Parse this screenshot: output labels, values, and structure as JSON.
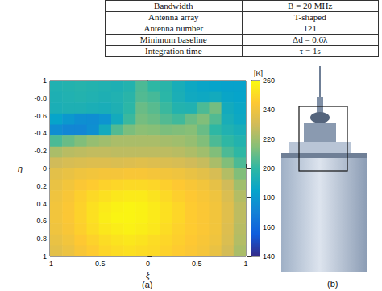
{
  "table": {
    "rows": [
      [
        "Bandwidth",
        "B = 20 MHz"
      ],
      [
        "Antenna array",
        "T-shaped"
      ],
      [
        "Antenna number",
        "121"
      ],
      [
        "Minimum baseline",
        "Δd = 0.6λ"
      ],
      [
        "Integration time",
        "τ = 1s"
      ]
    ]
  },
  "chart_data": {
    "type": "heatmap",
    "x_label": "ξ",
    "y_label": "η",
    "xlim": [
      -1,
      1
    ],
    "xticks": [
      -1,
      -0.5,
      0,
      0.5,
      1
    ],
    "ylim": [
      -1,
      1
    ],
    "yticks": [
      -1,
      -0.8,
      -0.6,
      -0.4,
      -0.2,
      0,
      0.2,
      0.4,
      0.6,
      0.8,
      1
    ],
    "x": [
      -0.9375,
      -0.8125,
      -0.6875,
      -0.5625,
      -0.4375,
      -0.3125,
      -0.1875,
      -0.0625,
      0.0625,
      0.1875,
      0.3125,
      0.4375,
      0.5625,
      0.6875,
      0.8125,
      0.9375
    ],
    "y": [
      -0.9375,
      -0.8125,
      -0.6875,
      -0.5625,
      -0.4375,
      -0.3125,
      -0.1875,
      -0.0625,
      0.0625,
      0.1875,
      0.3125,
      0.4375,
      0.5625,
      0.6875,
      0.8125,
      0.9375
    ],
    "cells": [
      [
        195,
        196,
        197,
        196,
        195,
        194,
        196,
        205,
        200,
        198,
        192,
        188,
        186,
        185,
        184,
        184
      ],
      [
        194,
        195,
        196,
        195,
        194,
        195,
        198,
        206,
        204,
        199,
        193,
        189,
        188,
        190,
        186,
        185
      ],
      [
        193,
        194,
        194,
        193,
        192,
        194,
        199,
        210,
        207,
        202,
        196,
        195,
        205,
        212,
        190,
        187
      ],
      [
        185,
        180,
        176,
        175,
        178,
        190,
        202,
        212,
        210,
        206,
        203,
        210,
        214,
        206,
        192,
        188
      ],
      [
        175,
        172,
        172,
        176,
        190,
        206,
        213,
        216,
        215,
        213,
        214,
        215,
        210,
        200,
        195,
        192
      ],
      [
        205,
        210,
        214,
        218,
        220,
        222,
        222,
        222,
        222,
        221,
        220,
        218,
        214,
        205,
        200,
        196
      ],
      [
        222,
        225,
        226,
        227,
        227,
        226,
        226,
        226,
        226,
        226,
        225,
        223,
        220,
        214,
        205,
        200
      ],
      [
        230,
        232,
        233,
        234,
        234,
        233,
        234,
        235,
        234,
        233,
        232,
        230,
        228,
        222,
        214,
        205
      ],
      [
        236,
        238,
        240,
        241,
        242,
        242,
        243,
        243,
        242,
        241,
        240,
        238,
        236,
        232,
        224,
        214
      ],
      [
        238,
        241,
        244,
        246,
        248,
        249,
        250,
        250,
        249,
        247,
        245,
        243,
        241,
        237,
        230,
        220
      ],
      [
        240,
        243,
        247,
        250,
        252,
        254,
        255,
        255,
        253,
        250,
        247,
        245,
        243,
        240,
        233,
        224
      ],
      [
        241,
        244,
        248,
        252,
        255,
        257,
        258,
        257,
        255,
        252,
        249,
        246,
        244,
        241,
        235,
        226
      ],
      [
        241,
        244,
        248,
        252,
        256,
        258,
        258,
        257,
        255,
        252,
        249,
        246,
        244,
        241,
        235,
        226
      ],
      [
        240,
        243,
        247,
        251,
        254,
        256,
        257,
        256,
        254,
        251,
        248,
        246,
        244,
        241,
        234,
        225
      ],
      [
        238,
        241,
        245,
        248,
        251,
        253,
        254,
        253,
        251,
        249,
        247,
        245,
        243,
        240,
        233,
        224
      ],
      [
        236,
        239,
        243,
        246,
        249,
        251,
        252,
        251,
        250,
        248,
        246,
        244,
        242,
        238,
        231,
        222
      ]
    ],
    "colorbar_label": "[K]",
    "colorbar_range": [
      140,
      260
    ],
    "colorbar_ticks": [
      140,
      160,
      180,
      200,
      220,
      240,
      260
    ]
  },
  "panel_labels": [
    "(a)",
    "(b)"
  ]
}
